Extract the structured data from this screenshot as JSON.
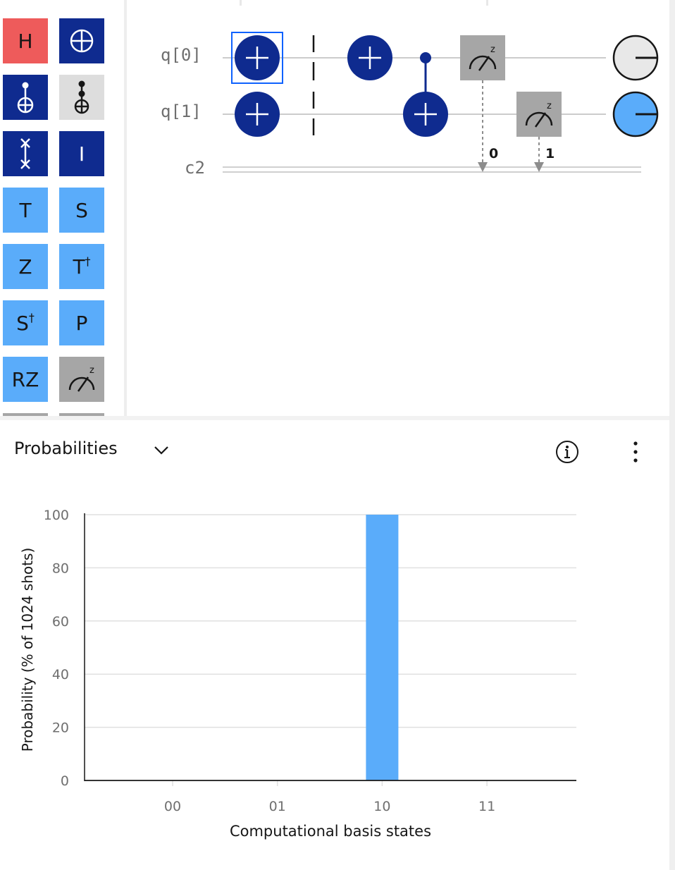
{
  "palette": {
    "gates": [
      {
        "id": "h",
        "label": "H",
        "style": "red",
        "col": 0,
        "row": 0
      },
      {
        "id": "not",
        "label": "",
        "icon": "oplus-icon",
        "style": "dark",
        "col": 1,
        "row": 0
      },
      {
        "id": "cnot",
        "label": "",
        "icon": "cnot-icon",
        "style": "dark",
        "col": 0,
        "row": 1
      },
      {
        "id": "toffoli",
        "label": "",
        "icon": "toffoli-icon",
        "style": "grey",
        "col": 1,
        "row": 1
      },
      {
        "id": "swap",
        "label": "",
        "icon": "swap-icon",
        "style": "dark",
        "col": 0,
        "row": 2
      },
      {
        "id": "i",
        "label": "I",
        "style": "dark",
        "col": 1,
        "row": 2
      },
      {
        "id": "t",
        "label": "T",
        "style": "light",
        "col": 0,
        "row": 3
      },
      {
        "id": "s",
        "label": "S",
        "style": "light",
        "col": 1,
        "row": 3
      },
      {
        "id": "z",
        "label": "Z",
        "style": "light",
        "col": 0,
        "row": 4
      },
      {
        "id": "tdg",
        "label": "T",
        "sup": "†",
        "style": "light",
        "col": 1,
        "row": 4
      },
      {
        "id": "sdg",
        "label": "S",
        "sup": "†",
        "style": "light",
        "col": 0,
        "row": 5
      },
      {
        "id": "p",
        "label": "P",
        "style": "light",
        "col": 1,
        "row": 5
      },
      {
        "id": "rz",
        "label": "RZ",
        "style": "light",
        "col": 0,
        "row": 6
      },
      {
        "id": "measure",
        "label": "",
        "icon": "measure-icon",
        "style": "meas",
        "col": 1,
        "row": 6
      }
    ]
  },
  "circuit": {
    "wires": [
      {
        "label": "q[0]",
        "type": "quantum"
      },
      {
        "label": "q[1]",
        "type": "quantum"
      },
      {
        "label": "c2",
        "type": "classical"
      }
    ],
    "measure_bits": [
      "0",
      "1"
    ],
    "measure_basis": "z"
  },
  "results": {
    "view_label": "Probabilities",
    "colors": {
      "bar": "#5aacfa",
      "grid": "#e0e0e0",
      "axis": "#161616",
      "ticks": "#6f6f6f"
    }
  },
  "chart_data": {
    "type": "bar",
    "categories": [
      "00",
      "01",
      "10",
      "11"
    ],
    "values": [
      0,
      0,
      100,
      0
    ],
    "xlabel": "Computational basis states",
    "ylabel": "Probability (% of 1024 shots)",
    "ylim": [
      0,
      100
    ],
    "yticks": [
      0,
      20,
      40,
      60,
      80,
      100
    ],
    "grid": true
  }
}
